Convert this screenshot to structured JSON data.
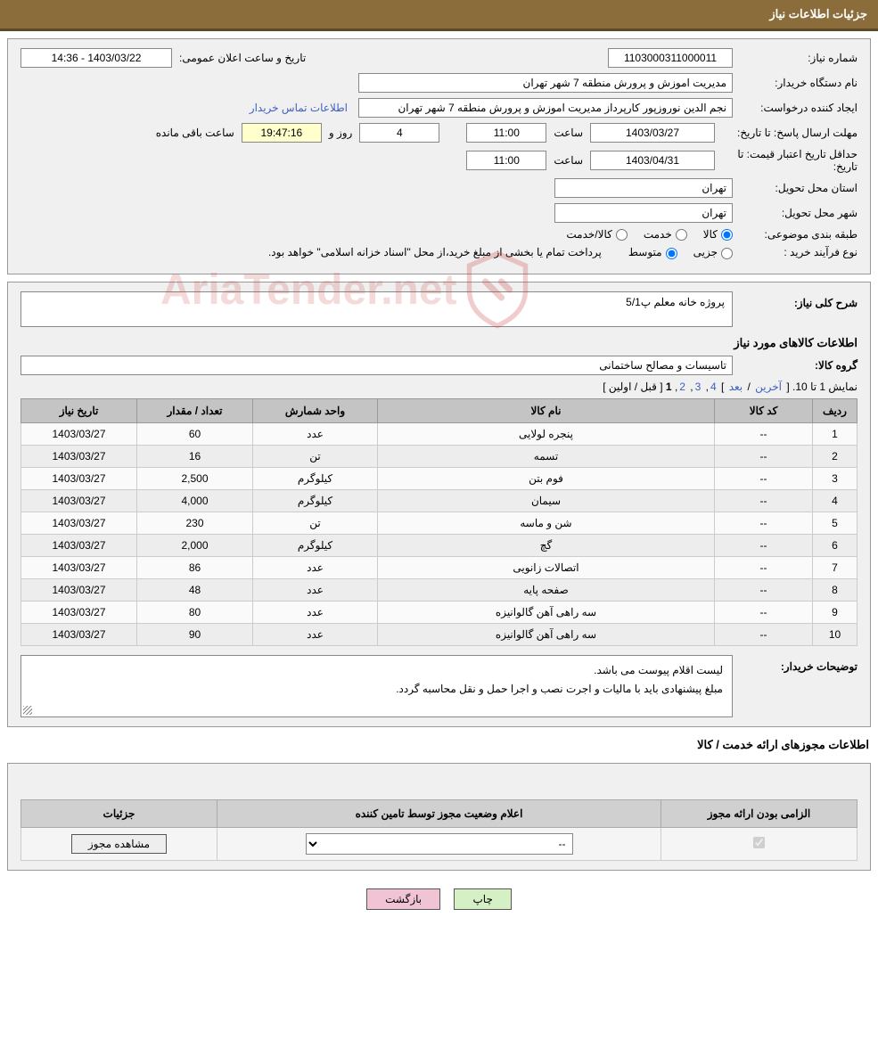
{
  "header": {
    "title": "جزئیات اطلاعات نیاز"
  },
  "info": {
    "need_number_label": "شماره نیاز:",
    "need_number": "1103000311000011",
    "announce_label": "تاریخ و ساعت اعلان عمومی:",
    "announce_value": "1403/03/22 - 14:36",
    "buyer_org_label": "نام دستگاه خریدار:",
    "buyer_org": "مدیریت اموزش و پرورش منطقه 7 شهر تهران",
    "requester_label": "ایجاد کننده درخواست:",
    "requester": "نجم الدین نوروزپور کارپرداز مدیریت اموزش و پرورش منطقه 7 شهر تهران",
    "contact_link": "اطلاعات تماس خریدار",
    "deadline_label": "مهلت ارسال پاسخ:   تا تاریخ:",
    "deadline_date": "1403/03/27",
    "time_label": "ساعت",
    "deadline_time": "11:00",
    "days_remaining": "4",
    "days_and": "روز و",
    "time_remaining": "19:47:16",
    "remaining_suffix": "ساعت باقی مانده",
    "validity_label": "حداقل تاریخ اعتبار قیمت: تا تاریخ:",
    "validity_date": "1403/04/31",
    "validity_time": "11:00",
    "province_label": "استان محل تحویل:",
    "province": "تهران",
    "city_label": "شهر محل تحویل:",
    "city": "تهران",
    "category_label": "طبقه بندی موضوعی:",
    "cat_goods": "کالا",
    "cat_service": "خدمت",
    "cat_both": "کالا/خدمت",
    "process_label": "نوع فرآیند خرید :",
    "proc_minor": "جزیی",
    "proc_medium": "متوسط",
    "process_note": "پرداخت تمام یا بخشی از مبلغ خرید،از محل \"اسناد خزانه اسلامی\" خواهد بود."
  },
  "need": {
    "overview_label": "شرح کلی نیاز:",
    "overview": "پروژه خانه معلم پ5/1",
    "items_title": "اطلاعات کالاهای مورد نیاز",
    "group_label": "گروه کالا:",
    "group": "تاسیسات و مصالح ساختمانی"
  },
  "pager": {
    "text_prefix": "نمایش 1 تا 10. [",
    "last": "آخرین",
    "sep1": " / ",
    "next": "بعد",
    "sep2": "] ",
    "p4": "4",
    "p3": "3",
    "p2": "2",
    "p1": "1",
    "sep3": " [",
    "prev": "قبل",
    "sep4": " / ",
    "first": "اولین",
    "text_suffix": "]"
  },
  "table": {
    "headers": {
      "row": "ردیف",
      "code": "کد کالا",
      "name": "نام کالا",
      "unit": "واحد شمارش",
      "qty": "تعداد / مقدار",
      "date": "تاریخ نیاز"
    },
    "col_widths": {
      "row": "50px",
      "code": "110px",
      "name": "auto",
      "unit": "140px",
      "qty": "130px",
      "date": "130px"
    },
    "rows": [
      {
        "n": "1",
        "code": "--",
        "name": "پنجره لولایی",
        "unit": "عدد",
        "qty": "60",
        "date": "1403/03/27"
      },
      {
        "n": "2",
        "code": "--",
        "name": "تسمه",
        "unit": "تن",
        "qty": "16",
        "date": "1403/03/27"
      },
      {
        "n": "3",
        "code": "--",
        "name": "فوم بتن",
        "unit": "کیلوگرم",
        "qty": "2,500",
        "date": "1403/03/27"
      },
      {
        "n": "4",
        "code": "--",
        "name": "سیمان",
        "unit": "کیلوگرم",
        "qty": "4,000",
        "date": "1403/03/27"
      },
      {
        "n": "5",
        "code": "--",
        "name": "شن و ماسه",
        "unit": "تن",
        "qty": "230",
        "date": "1403/03/27"
      },
      {
        "n": "6",
        "code": "--",
        "name": "گچ",
        "unit": "کیلوگرم",
        "qty": "2,000",
        "date": "1403/03/27"
      },
      {
        "n": "7",
        "code": "--",
        "name": "اتصالات زانویی",
        "unit": "عدد",
        "qty": "86",
        "date": "1403/03/27"
      },
      {
        "n": "8",
        "code": "--",
        "name": "صفحه پایه",
        "unit": "عدد",
        "qty": "48",
        "date": "1403/03/27"
      },
      {
        "n": "9",
        "code": "--",
        "name": "سه راهی آهن گالوانیزه",
        "unit": "عدد",
        "qty": "80",
        "date": "1403/03/27"
      },
      {
        "n": "10",
        "code": "--",
        "name": "سه راهی آهن گالوانیزه",
        "unit": "عدد",
        "qty": "90",
        "date": "1403/03/27"
      }
    ]
  },
  "buyer_notes": {
    "label": "توضیحات خریدار:",
    "line1": "لیست اقلام پیوست می باشد.",
    "line2": "مبلغ پیشنهادی باید با مالیات و اجرت نصب و اجرا حمل و نقل  محاسبه گردد."
  },
  "licenses": {
    "section_title": "اطلاعات مجوزهای ارائه خدمت / کالا",
    "headers": {
      "mandatory": "الزامی بودن ارائه مجوز",
      "status": "اعلام وضعیت مجوز توسط تامین کننده",
      "details": "جزئیات"
    },
    "status_placeholder": "--",
    "view_btn": "مشاهده مجوز"
  },
  "footer": {
    "print": "چاپ",
    "back": "بازگشت"
  },
  "watermark": {
    "text": "AriaTender.net"
  },
  "colors": {
    "header_bg": "#8a6d3b",
    "panel_bg": "#f0f0f0",
    "th_bg": "#c4c4c4",
    "link": "#4060c0"
  }
}
